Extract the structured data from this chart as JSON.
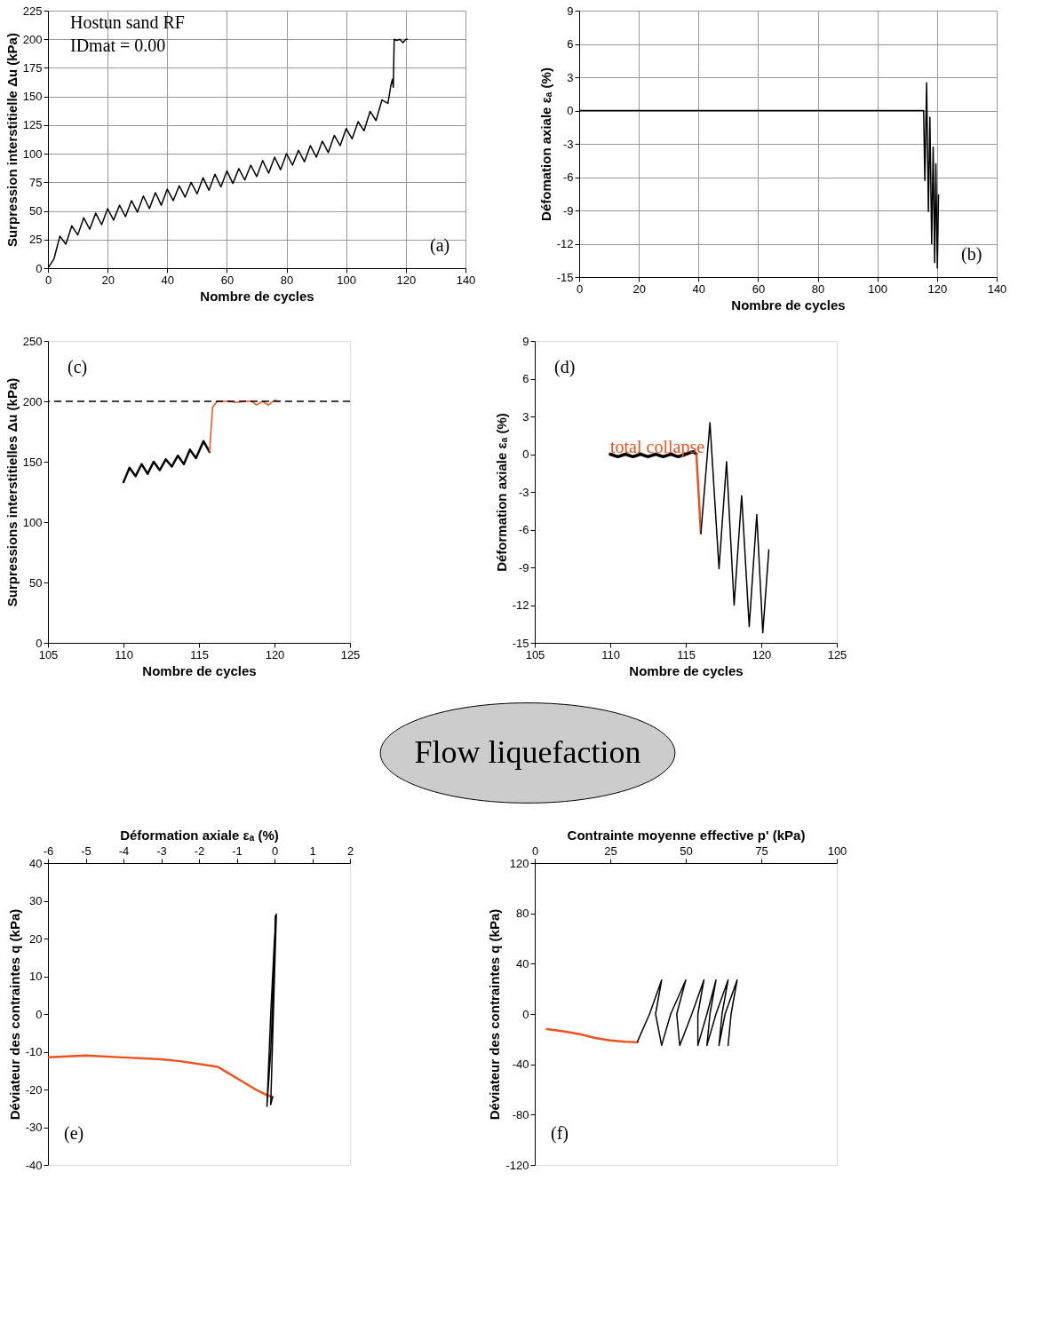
{
  "chart_data": [
    {
      "type": "line",
      "xlabel": "Nombre de cycles",
      "ylabel": "Surpression interstitielle Δu (kPa)",
      "xlim": [
        0,
        140
      ],
      "xticks": [
        0,
        20,
        40,
        60,
        80,
        100,
        120,
        140
      ],
      "ylim": [
        0,
        225
      ],
      "yticks": [
        0,
        25,
        50,
        75,
        100,
        125,
        150,
        175,
        200,
        225
      ],
      "grid": true,
      "annotations": [
        "Hostun sand RF",
        "IDmat = 0.00",
        "(a)"
      ],
      "series": [
        {
          "color": "#000000",
          "x": [
            0,
            2,
            4,
            6,
            8,
            10,
            12,
            14,
            16,
            18,
            20,
            22,
            24,
            26,
            28,
            30,
            32,
            34,
            36,
            38,
            40,
            42,
            44,
            46,
            48,
            50,
            52,
            54,
            56,
            58,
            60,
            62,
            64,
            66,
            68,
            70,
            72,
            74,
            76,
            78,
            80,
            82,
            84,
            86,
            88,
            90,
            92,
            94,
            96,
            98,
            100,
            102,
            104,
            106,
            108,
            110,
            112,
            114,
            115,
            115.5,
            115.8,
            116.1,
            117,
            118,
            119,
            120,
            120.5
          ],
          "values": [
            0,
            8,
            28,
            21,
            37,
            29,
            44,
            34,
            48,
            38,
            52,
            42,
            55,
            45,
            59,
            49,
            63,
            52,
            66,
            55,
            69,
            59,
            72,
            62,
            75,
            65,
            79,
            68,
            82,
            71,
            85,
            74,
            87,
            77,
            90,
            80,
            94,
            83,
            97,
            86,
            100,
            90,
            103,
            93,
            107,
            97,
            111,
            101,
            116,
            107,
            122,
            113,
            128,
            120,
            137,
            129,
            147,
            144,
            160,
            165,
            158,
            200,
            199,
            200,
            197,
            200,
            200
          ]
        }
      ]
    },
    {
      "type": "line",
      "xlabel": "Nombre de cycles",
      "ylabel": "Défomation axiale εₐ (%)",
      "xlim": [
        0,
        140
      ],
      "xticks": [
        0,
        20,
        40,
        60,
        80,
        100,
        120,
        140
      ],
      "ylim": [
        -15,
        9
      ],
      "yticks": [
        -15,
        -12,
        -9,
        -6,
        -3,
        0,
        3,
        6,
        9
      ],
      "grid": true,
      "annotations": [
        "(b)"
      ],
      "series": [
        {
          "color": "#000000",
          "x": [
            0,
            115.5,
            115.9,
            116.5,
            117.1,
            117.6,
            118.2,
            118.7,
            119.2,
            119.6,
            120.1,
            120.5
          ],
          "values": [
            0,
            0,
            -6.3,
            2.5,
            -9.1,
            -0.6,
            -12.0,
            -3.3,
            -13.7,
            -4.8,
            -14.2,
            -7.6
          ]
        }
      ]
    },
    {
      "type": "line",
      "xlabel": "Nombre de cycles",
      "ylabel": "Surpressions interstitielles Δu (kPa)",
      "xlim": [
        105,
        125
      ],
      "xticks": [
        105,
        110,
        115,
        120,
        125
      ],
      "ylim": [
        0,
        250
      ],
      "yticks": [
        0,
        50,
        100,
        150,
        200,
        250
      ],
      "annotations": [
        "(c)"
      ],
      "ref_lines": [
        {
          "axis": "y",
          "value": 200,
          "color": "#000000",
          "line_style": "dashed"
        }
      ],
      "series": [
        {
          "color": "#000000",
          "x": [
            110,
            110.4,
            110.8,
            111.2,
            111.6,
            112,
            112.4,
            112.8,
            113.2,
            113.6,
            114,
            114.4,
            114.8,
            115.3,
            115.7
          ],
          "values": [
            133,
            145,
            138,
            148,
            140,
            150,
            143,
            152,
            146,
            155,
            148,
            160,
            153,
            167,
            158
          ]
        },
        {
          "color": "#f0501e",
          "x": [
            115.7,
            115.9,
            116.2,
            117,
            117.5,
            118,
            118.5,
            118.8,
            119.2,
            119.6,
            120,
            120.3
          ],
          "values": [
            158,
            195,
            200,
            200,
            199,
            200,
            200,
            197,
            200,
            197,
            201,
            200
          ]
        }
      ]
    },
    {
      "type": "line",
      "xlabel": "Nombre de cycles",
      "ylabel": "Déformation axiale εₐ (%)",
      "xlim": [
        105,
        125
      ],
      "xticks": [
        105,
        110,
        115,
        120,
        125
      ],
      "ylim": [
        -15,
        9
      ],
      "yticks": [
        -15,
        -12,
        -9,
        -6,
        -3,
        0,
        3,
        6,
        9
      ],
      "annotations": [
        "(d)",
        "total collapse"
      ],
      "series": [
        {
          "color": "#000000",
          "x": [
            110,
            110.5,
            111,
            111.5,
            112,
            112.5,
            113,
            113.5,
            114,
            114.5,
            115,
            115.5,
            115.7
          ],
          "values": [
            0,
            -0.2,
            0,
            -0.2,
            0,
            -0.2,
            0,
            -0.2,
            0,
            -0.2,
            0,
            0.2,
            0
          ]
        },
        {
          "color": "#f0501e",
          "x": [
            115.7,
            116.0
          ],
          "values": [
            0,
            -6.3
          ]
        },
        {
          "color": "#000000",
          "x": [
            116.0,
            116.6,
            117.2,
            117.7,
            118.2,
            118.7,
            119.2,
            119.7,
            120.1,
            120.5
          ],
          "values": [
            -6.3,
            2.5,
            -9.1,
            -0.6,
            -12.0,
            -3.3,
            -13.7,
            -4.8,
            -14.2,
            -7.6
          ]
        }
      ]
    },
    {
      "type": "other",
      "annotations": [
        "Flow liquefaction"
      ]
    },
    {
      "type": "line",
      "xlabel": "Déformation axiale εₐ (%)",
      "ylabel": "Déviateur des contraintes q (kPa)",
      "xlim": [
        -6,
        2
      ],
      "xticks": [
        -6,
        -5,
        -4,
        -3,
        -2,
        -1,
        0,
        1,
        2
      ],
      "ylim": [
        -40,
        40
      ],
      "yticks": [
        -40,
        -30,
        -20,
        -10,
        0,
        10,
        20,
        30,
        40
      ],
      "annotations": [
        "(e)"
      ],
      "series": [
        {
          "color": "#f0501e",
          "x": [
            -6,
            -5,
            -4,
            -3,
            -2.5,
            -1.5,
            -1,
            -0.5,
            -0.2,
            -0.05
          ],
          "values": [
            -11.5,
            -11,
            -11.5,
            -12,
            -12.5,
            -14,
            -17,
            -20,
            -21.5,
            -22
          ]
        },
        {
          "color": "#000000",
          "x": [
            -0.05,
            -0.1,
            0.0,
            0.05,
            0.0,
            -0.1,
            -0.2,
            -0.1,
            0.0,
            0.02
          ],
          "values": [
            -22,
            -24,
            10,
            26.5,
            20,
            0,
            -24.5,
            -10,
            15,
            26
          ]
        }
      ]
    },
    {
      "type": "line",
      "xlabel": "Contrainte  moyenne effective p' (kPa)",
      "ylabel": "Déviateur des contraintes q (kPa)",
      "xlim": [
        0,
        100
      ],
      "xticks": [
        0,
        25,
        50,
        75,
        100
      ],
      "ylim": [
        -120,
        120
      ],
      "yticks": [
        -120,
        -80,
        -40,
        0,
        40,
        80,
        120
      ],
      "annotations": [
        "(f)"
      ],
      "series": [
        {
          "color": "#f0501e",
          "x": [
            4,
            10,
            15,
            20,
            25,
            30,
            34
          ],
          "values": [
            -12,
            -14,
            -16,
            -19,
            -21,
            -22,
            -22.5
          ]
        },
        {
          "color": "#000000",
          "x": [
            34,
            38,
            42,
            40,
            42,
            45,
            50,
            47,
            48,
            52,
            56,
            54,
            54,
            57,
            60,
            58,
            57,
            60,
            64,
            62,
            61,
            63,
            67,
            65,
            64
          ],
          "values": [
            -22,
            0,
            27,
            0,
            -25,
            0,
            27,
            0,
            -25,
            0,
            27,
            0,
            -25,
            0,
            27,
            0,
            -25,
            0,
            27,
            0,
            -25,
            0,
            27,
            0,
            -25
          ]
        }
      ]
    }
  ]
}
